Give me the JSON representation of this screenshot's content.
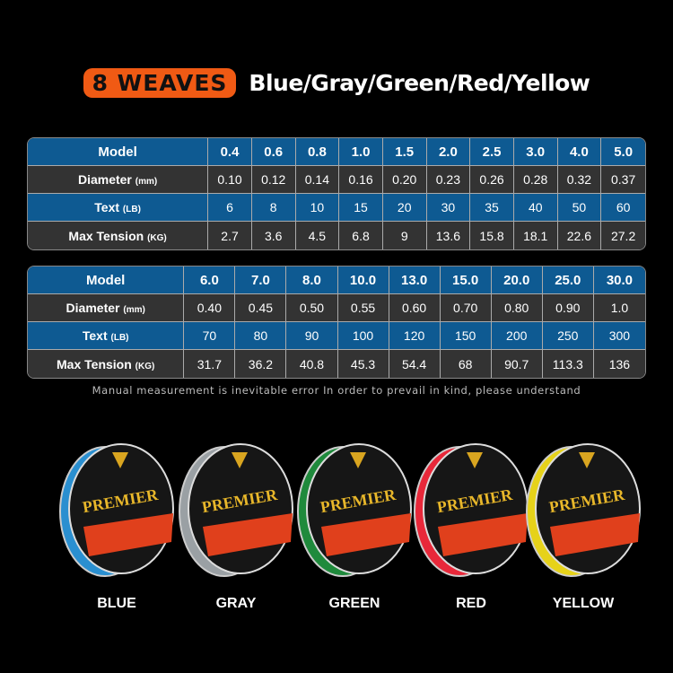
{
  "title": {
    "badge": "8 WEAVES",
    "colors": "Blue/Gray/Green/Red/Yellow",
    "badge_color": "#f05a14"
  },
  "row_labels": {
    "model": "Model",
    "diameter": "Diameter",
    "diameter_unit": "(mm)",
    "text": "Text",
    "text_unit": "(LB)",
    "tension": "Max Tension",
    "tension_unit": "(KG)"
  },
  "table1": {
    "model": [
      "0.4",
      "0.6",
      "0.8",
      "1.0",
      "1.5",
      "2.0",
      "2.5",
      "3.0",
      "4.0",
      "5.0"
    ],
    "diameter": [
      "0.10",
      "0.12",
      "0.14",
      "0.16",
      "0.20",
      "0.23",
      "0.26",
      "0.28",
      "0.32",
      "0.37"
    ],
    "text": [
      "6",
      "8",
      "10",
      "15",
      "20",
      "30",
      "35",
      "40",
      "50",
      "60"
    ],
    "tension": [
      "2.7",
      "3.6",
      "4.5",
      "6.8",
      "9",
      "13.6",
      "15.8",
      "18.1",
      "22.6",
      "27.2"
    ]
  },
  "table2": {
    "model": [
      "6.0",
      "7.0",
      "8.0",
      "10.0",
      "13.0",
      "15.0",
      "20.0",
      "25.0",
      "30.0"
    ],
    "diameter": [
      "0.40",
      "0.45",
      "0.50",
      "0.55",
      "0.60",
      "0.70",
      "0.80",
      "0.90",
      "1.0"
    ],
    "text": [
      "70",
      "80",
      "90",
      "100",
      "120",
      "150",
      "200",
      "250",
      "300"
    ],
    "tension": [
      "31.7",
      "36.2",
      "40.8",
      "45.3",
      "54.4",
      "68",
      "90.7",
      "113.3",
      "136"
    ]
  },
  "note": "Manual measurement is inevitable error In order to prevail in kind, please understand",
  "spool_logo": "PREMIER",
  "spools": [
    {
      "label": "BLUE",
      "color": "#2a8fd0"
    },
    {
      "label": "GRAY",
      "color": "#9aa0a4"
    },
    {
      "label": "GREEN",
      "color": "#1f8a3c"
    },
    {
      "label": "RED",
      "color": "#e8283a"
    },
    {
      "label": "YELLOW",
      "color": "#e6d21a"
    }
  ]
}
